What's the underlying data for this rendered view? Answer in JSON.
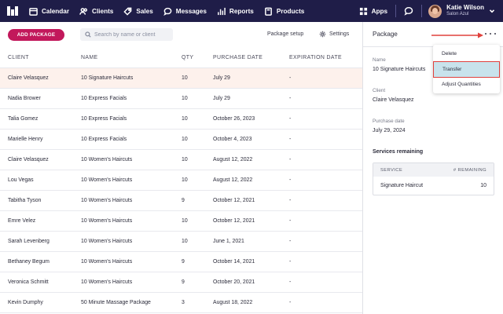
{
  "nav": {
    "items": [
      {
        "label": "Calendar",
        "icon": "calendar-icon"
      },
      {
        "label": "Clients",
        "icon": "users-icon"
      },
      {
        "label": "Sales",
        "icon": "tag-icon"
      },
      {
        "label": "Messages",
        "icon": "message-icon"
      },
      {
        "label": "Reports",
        "icon": "bar-chart-icon"
      },
      {
        "label": "Products",
        "icon": "box-icon"
      }
    ],
    "apps_label": "Apps",
    "user_name": "Katie Wilson",
    "user_sub": "Salon Azul"
  },
  "toolbar": {
    "add_label": "ADD PACKAGE",
    "search_placeholder": "Search by name or client",
    "package_setup_label": "Package setup",
    "settings_label": "Settings"
  },
  "table": {
    "headers": [
      "CLIENT",
      "NAME",
      "QTY",
      "PURCHASE DATE",
      "EXPIRATION DATE"
    ],
    "rows": [
      [
        "Claire Velasquez",
        "10 Signature Haircuts",
        "10",
        "July 29",
        "-"
      ],
      [
        "Nadia Brower",
        "10 Express Facials",
        "10",
        "July 29",
        "-"
      ],
      [
        "Talia Gomez",
        "10 Express Facials",
        "10",
        "October 26, 2023",
        "-"
      ],
      [
        "Marielle Henry",
        "10 Express Facials",
        "10",
        "October 4, 2023",
        "-"
      ],
      [
        "Claire Velasquez",
        "10 Women's Haircuts",
        "10",
        "August 12, 2022",
        "-"
      ],
      [
        "Lou Vegas",
        "10 Women's Haircuts",
        "10",
        "August 12, 2022",
        "-"
      ],
      [
        "Tabitha Tyson",
        "10 Women's Haircuts",
        "9",
        "October 12, 2021",
        "-"
      ],
      [
        "Emre Velez",
        "10 Women's Haircuts",
        "10",
        "October 12, 2021",
        "-"
      ],
      [
        "Sarah Levenberg",
        "10 Women's Haircuts",
        "10",
        "June 1, 2021",
        "-"
      ],
      [
        "Bethaney Begum",
        "10 Women's Haircuts",
        "9",
        "October 14, 2021",
        "-"
      ],
      [
        "Veronica Schmitt",
        "10 Women's Haircuts",
        "9",
        "October 20, 2021",
        "-"
      ],
      [
        "Kevin Dumphy",
        "50 Minute Massage Package",
        "3",
        "August 18, 2022",
        "-"
      ]
    ]
  },
  "panel": {
    "title": "Package",
    "name_label": "Name",
    "name_value": "10 Signature Haircuts",
    "client_label": "Client",
    "client_value": "Claire Velasquez",
    "purchase_label": "Purchase date",
    "purchase_value": "July 29, 2024",
    "services_title": "Services remaining",
    "services_headers": [
      "SERVICE",
      "# REMAINING"
    ],
    "services": [
      {
        "service": "Signature Haircut",
        "remaining": "10"
      }
    ]
  },
  "menu": {
    "items": [
      "Delete",
      "Transfer",
      "Adjust Quantities"
    ]
  },
  "colors": {
    "nav_bg": "#1f1d48",
    "accent": "#c2185b",
    "highlight_row": "#fdf1ec",
    "annotation": "#e0413d"
  }
}
